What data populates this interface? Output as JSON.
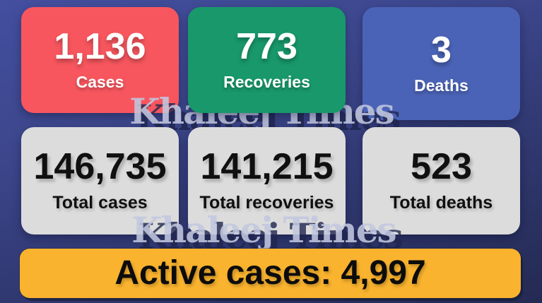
{
  "watermark": {
    "text": "Khaleej Times"
  },
  "cards_daily": [
    {
      "value": "1,136",
      "label": "Cases"
    },
    {
      "value": "773",
      "label": "Recoveries"
    },
    {
      "value": "3",
      "label": "Deaths"
    }
  ],
  "cards_total": [
    {
      "value": "146,735",
      "label": "Total cases"
    },
    {
      "value": "141,215",
      "label": "Total recoveries"
    },
    {
      "value": "523",
      "label": "Total deaths"
    }
  ],
  "banner": {
    "text": "Active cases: 4,997"
  },
  "colors": {
    "background_top": "#434f9f",
    "background_bottom": "#242a52",
    "card_cases": "#f7565e",
    "card_recoveries": "#18986b",
    "card_deaths": "#4a63b6",
    "card_totals": "#dcdcdc",
    "banner": "#f9b32e",
    "watermark_light": "#c1c7df",
    "watermark_shadow": "#1f254d",
    "text_light": "#ffffff",
    "text_dark": "#101010"
  },
  "chart_data": {
    "type": "table",
    "title": "",
    "metrics": [
      {
        "label": "Cases",
        "value": 1136
      },
      {
        "label": "Recoveries",
        "value": 773
      },
      {
        "label": "Deaths",
        "value": 3
      },
      {
        "label": "Total cases",
        "value": 146735
      },
      {
        "label": "Total recoveries",
        "value": 141215
      },
      {
        "label": "Total deaths",
        "value": 523
      },
      {
        "label": "Active cases",
        "value": 4997
      }
    ]
  }
}
